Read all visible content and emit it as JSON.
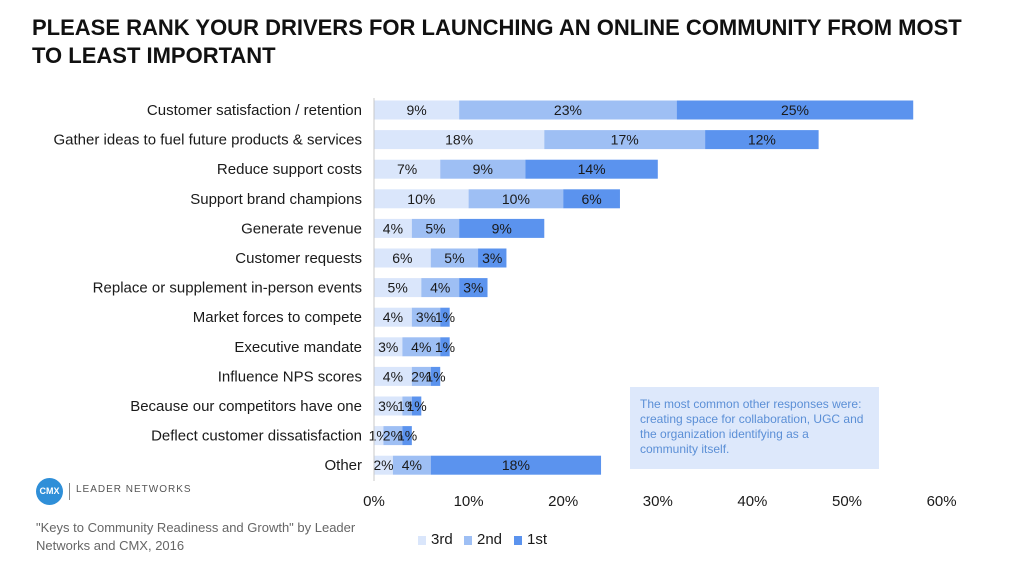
{
  "title": "PLEASE RANK YOUR DRIVERS FOR LAUNCHING AN ONLINE COMMUNITY FROM MOST TO LEAST IMPORTANT",
  "note": "The most common other responses were: creating space for collaboration, UGC and the organization identifying as a community itself.",
  "logo": {
    "badge": "CMX",
    "text": "LEADER NETWORKS"
  },
  "source": "\"Keys to Community Readiness and Growth\" by Leader Networks and CMX, 2016",
  "colors": {
    "3rd": "#dae6fb",
    "2nd": "#9ebff4",
    "1st": "#5b93ee"
  },
  "chart_data": {
    "type": "bar",
    "orientation": "horizontal",
    "stacked": true,
    "title": "PLEASE RANK YOUR DRIVERS FOR LAUNCHING AN ONLINE COMMUNITY FROM MOST TO LEAST IMPORTANT",
    "categories": [
      "Customer satisfaction / retention",
      "Gather ideas to fuel future products & services",
      "Reduce support costs",
      "Support brand champions",
      "Generate revenue",
      "Customer requests",
      "Replace or supplement in-person events",
      "Market forces to compete",
      "Executive mandate",
      "Influence NPS scores",
      "Because our competitors have one",
      "Deflect customer dissatisfaction",
      "Other"
    ],
    "series": [
      {
        "name": "3rd",
        "values": [
          9,
          18,
          7,
          10,
          4,
          6,
          5,
          4,
          3,
          4,
          3,
          1,
          2
        ]
      },
      {
        "name": "2nd",
        "values": [
          23,
          17,
          9,
          10,
          5,
          5,
          4,
          3,
          4,
          2,
          1,
          2,
          4
        ]
      },
      {
        "name": "1st",
        "values": [
          25,
          12,
          14,
          6,
          9,
          3,
          3,
          1,
          1,
          1,
          1,
          1,
          18
        ]
      }
    ],
    "value_suffix": "%",
    "xlim": [
      0,
      60
    ],
    "xticks": [
      "0%",
      "10%",
      "20%",
      "30%",
      "40%",
      "50%",
      "60%"
    ],
    "xtick_values": [
      0,
      10,
      20,
      30,
      40,
      50,
      60
    ],
    "grid": false,
    "legend_position": "bottom"
  }
}
